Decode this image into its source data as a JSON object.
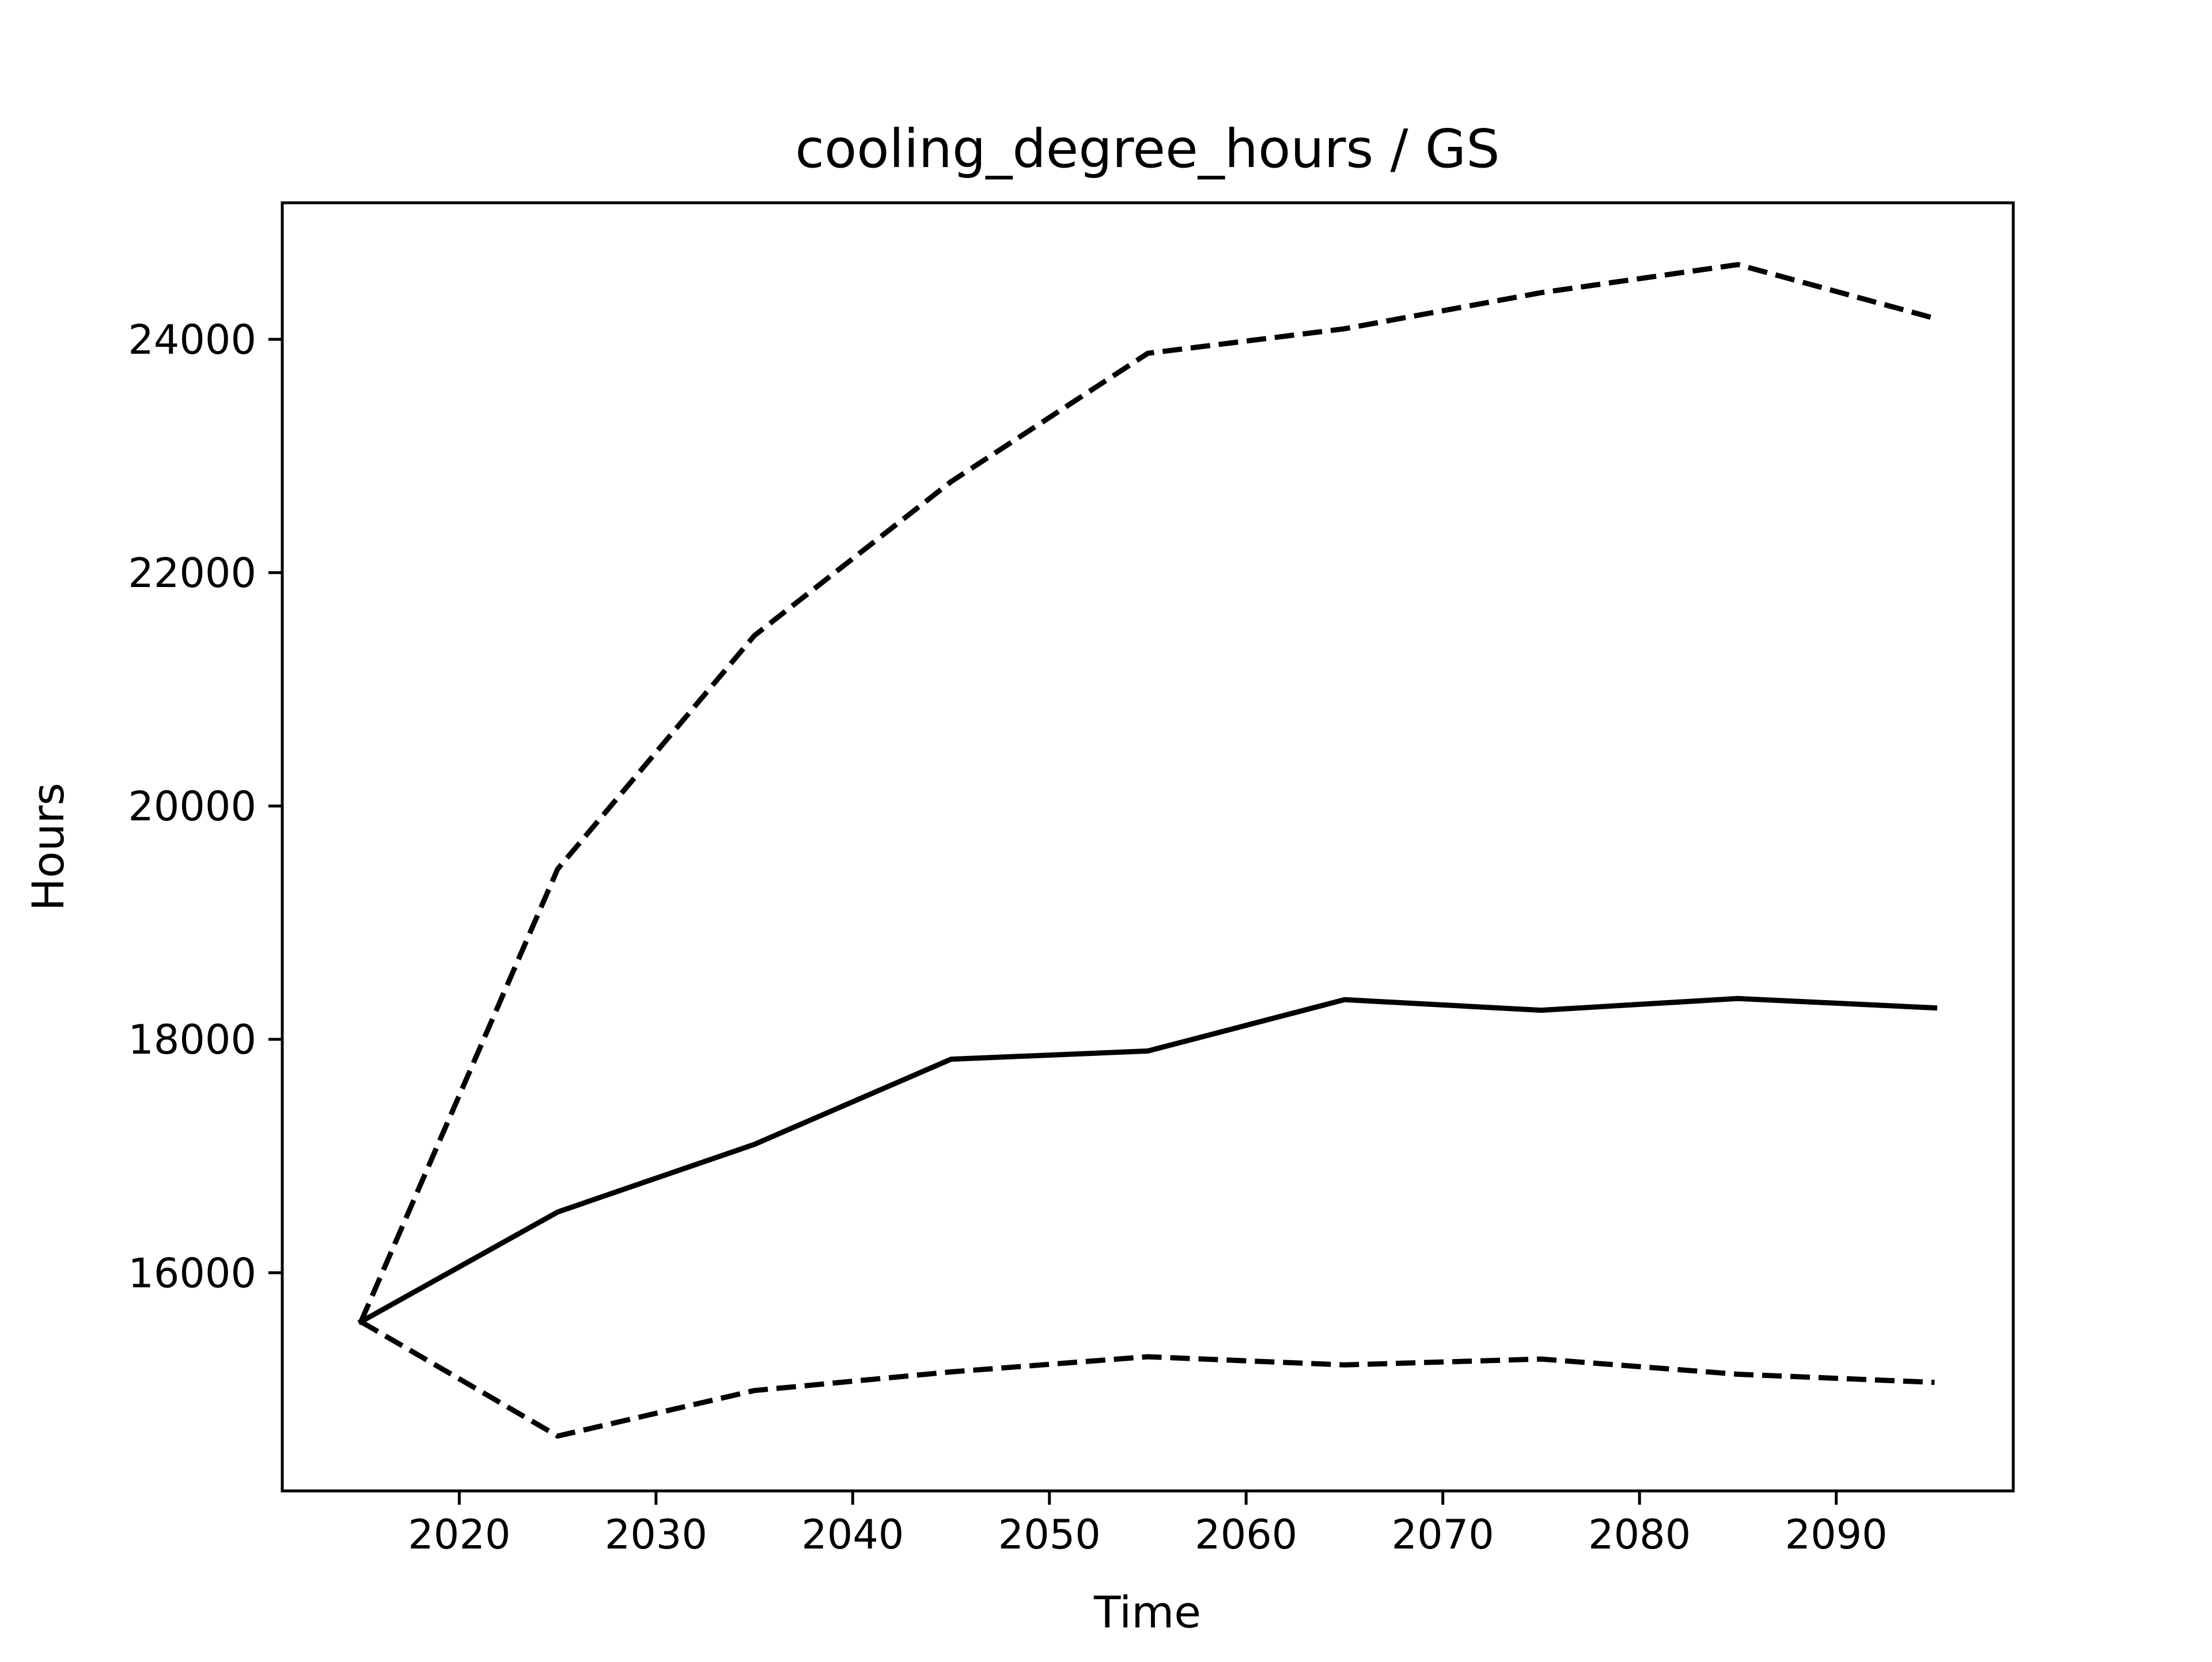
{
  "chart_data": {
    "type": "line",
    "title": "cooling_degree_hours / GS",
    "xlabel": "Time",
    "ylabel": "Hours",
    "xlim": [
      2011,
      2099
    ],
    "ylim": [
      14130,
      25170
    ],
    "xticks": [
      2020,
      2030,
      2040,
      2050,
      2060,
      2070,
      2080,
      2090
    ],
    "yticks": [
      16000,
      18000,
      20000,
      22000,
      24000
    ],
    "x": [
      2015,
      2025,
      2035,
      2045,
      2055,
      2065,
      2075,
      2085,
      2095
    ],
    "grid": false,
    "legend": "none",
    "series": [
      {
        "style": "solid",
        "color": "#000000",
        "values": [
          15580,
          16520,
          17100,
          17830,
          17900,
          18340,
          18250,
          18350,
          18270
        ]
      },
      {
        "style": "dashed",
        "color": "#000000",
        "values": [
          15580,
          19460,
          21460,
          22780,
          23880,
          24090,
          24400,
          24640,
          24180
        ]
      },
      {
        "style": "dashed",
        "color": "#000000",
        "values": [
          15580,
          14600,
          14990,
          15150,
          15280,
          15210,
          15260,
          15130,
          15060
        ]
      }
    ]
  }
}
